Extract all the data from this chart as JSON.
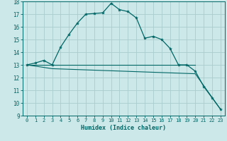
{
  "xlabel": "Humidex (Indice chaleur)",
  "xlim": [
    -0.5,
    23.5
  ],
  "ylim": [
    9,
    18
  ],
  "xticks": [
    0,
    1,
    2,
    3,
    4,
    5,
    6,
    7,
    8,
    9,
    10,
    11,
    12,
    13,
    14,
    15,
    16,
    17,
    18,
    19,
    20,
    21,
    22,
    23
  ],
  "yticks": [
    9,
    10,
    11,
    12,
    13,
    14,
    15,
    16,
    17,
    18
  ],
  "bg_color": "#cde8e8",
  "grid_color": "#aacccc",
  "line_color": "#006666",
  "line1_x": [
    0,
    1,
    2,
    3,
    4,
    5,
    6,
    7,
    8,
    9,
    10,
    11,
    12,
    13,
    14,
    15,
    16,
    17,
    18,
    19,
    20,
    21,
    22,
    23
  ],
  "line1_y": [
    13.0,
    13.15,
    13.35,
    13.0,
    14.4,
    15.4,
    16.3,
    17.0,
    17.05,
    17.1,
    17.85,
    17.35,
    17.2,
    16.7,
    15.1,
    15.25,
    15.0,
    14.3,
    13.0,
    13.0,
    12.5,
    11.3,
    10.4,
    9.5
  ],
  "line2_x": [
    0,
    19,
    20
  ],
  "line2_y": [
    13.0,
    13.0,
    13.0
  ],
  "line3_x": [
    0,
    3,
    20,
    23
  ],
  "line3_y": [
    13.0,
    12.7,
    12.3,
    9.5
  ]
}
